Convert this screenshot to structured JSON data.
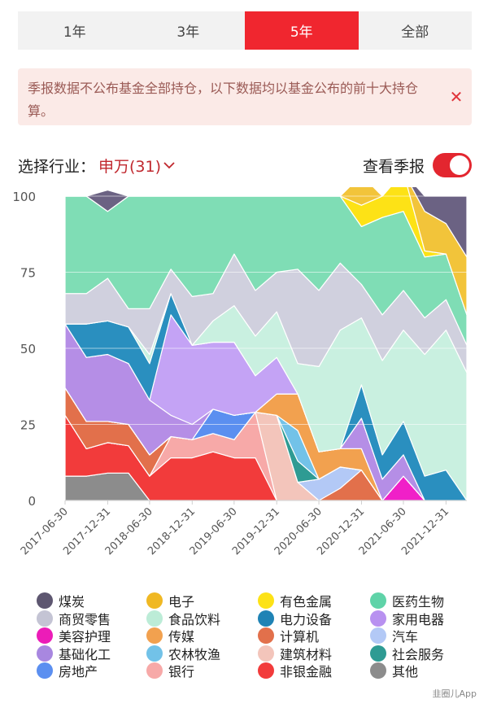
{
  "tabs": [
    {
      "label": "1年",
      "active": false
    },
    {
      "label": "3年",
      "active": false
    },
    {
      "label": "5年",
      "active": true
    },
    {
      "label": "全部",
      "active": false
    }
  ],
  "notice": {
    "text": "季报数据不公布基金全部持仓，以下数据均以基金公布的前十大持仓算。"
  },
  "filter": {
    "label": "选择行业：",
    "value": "申万(31)"
  },
  "report_toggle": {
    "label": "查看季报",
    "on": true
  },
  "watermark": "韭圈儿App",
  "chart_data": {
    "type": "area",
    "stacked": true,
    "ylim": [
      0,
      100
    ],
    "yticks": [
      0,
      25,
      50,
      75,
      100
    ],
    "xlabels": [
      "2017-06-30",
      "2017-12-31",
      "2018-06-30",
      "2018-12-31",
      "2019-06-30",
      "2019-12-31",
      "2020-06-30",
      "2020-12-31",
      "2021-06-30",
      "2021-12-31"
    ],
    "x": [
      "2017-06-30",
      "2017-09-30",
      "2017-12-31",
      "2018-03-31",
      "2018-06-30",
      "2018-09-30",
      "2018-12-31",
      "2019-03-31",
      "2019-06-30",
      "2019-09-30",
      "2019-12-31",
      "2020-03-31",
      "2020-06-30",
      "2020-09-30",
      "2020-12-31",
      "2021-03-31",
      "2021-06-30",
      "2021-09-30",
      "2021-12-31",
      "2022-03-31"
    ],
    "series": [
      {
        "name": "其他",
        "color": "#8c8c8c",
        "values": [
          8,
          8,
          9,
          9,
          0,
          0,
          0,
          0,
          0,
          0,
          0,
          0,
          0,
          0,
          0,
          0,
          0,
          0,
          0,
          0
        ]
      },
      {
        "name": "非银金融",
        "color": "#f23b3b",
        "values": [
          20,
          9,
          10,
          9,
          8,
          14,
          14,
          16,
          14,
          14,
          0,
          0,
          0,
          0,
          0,
          0,
          0,
          0,
          0,
          0
        ]
      },
      {
        "name": "银行",
        "color": "#f7a9a8",
        "values": [
          0,
          0,
          0,
          0,
          0,
          7,
          6,
          6,
          6,
          15,
          0,
          0,
          0,
          0,
          0,
          0,
          0,
          0,
          0,
          0
        ]
      },
      {
        "name": "建筑材料",
        "color": "#f3c5bb",
        "values": [
          0,
          0,
          0,
          0,
          0,
          0,
          0,
          0,
          0,
          0,
          28,
          6,
          0,
          0,
          0,
          0,
          0,
          0,
          0,
          0
        ]
      },
      {
        "name": "计算机",
        "color": "#e2704b",
        "values": [
          9,
          9,
          7,
          7,
          7,
          0,
          0,
          0,
          0,
          0,
          0,
          0,
          0,
          4,
          10,
          0,
          0,
          0,
          0,
          0
        ]
      },
      {
        "name": "汽车",
        "color": "#b3c9f6",
        "values": [
          0,
          0,
          0,
          0,
          0,
          0,
          0,
          0,
          0,
          0,
          0,
          0,
          7,
          7,
          0,
          0,
          0,
          0,
          0,
          0
        ]
      },
      {
        "name": "美容护理",
        "color": "#f020c8",
        "values": [
          0,
          0,
          0,
          0,
          0,
          0,
          0,
          0,
          0,
          0,
          0,
          0,
          0,
          0,
          0,
          0,
          8,
          0,
          0,
          0
        ]
      },
      {
        "name": "房地产",
        "color": "#5b8ff0",
        "values": [
          0,
          0,
          0,
          0,
          0,
          0,
          0,
          8,
          8,
          0,
          0,
          0,
          0,
          0,
          0,
          0,
          0,
          0,
          0,
          0
        ]
      },
      {
        "name": "社会服务",
        "color": "#2e9b93",
        "values": [
          0,
          0,
          0,
          0,
          0,
          0,
          0,
          0,
          0,
          0,
          0,
          7,
          0,
          0,
          0,
          0,
          0,
          0,
          0,
          0
        ]
      },
      {
        "name": "农林牧渔",
        "color": "#72c2e8",
        "values": [
          0,
          0,
          0,
          0,
          0,
          0,
          0,
          0,
          0,
          0,
          0,
          10,
          0,
          0,
          0,
          0,
          0,
          0,
          0,
          0
        ]
      },
      {
        "name": "传媒",
        "color": "#f2a14f",
        "values": [
          0,
          0,
          0,
          0,
          0,
          0,
          0,
          0,
          0,
          0,
          7,
          12,
          9,
          6,
          7,
          0,
          0,
          0,
          0,
          0
        ]
      },
      {
        "name": "基础化工",
        "color": "#b58ee6",
        "values": [
          21,
          21,
          22,
          20,
          18,
          7,
          5,
          0,
          0,
          0,
          0,
          0,
          0,
          0,
          10,
          7,
          7,
          0,
          0,
          0
        ]
      },
      {
        "name": "家用电器",
        "color": "#c4a3f5",
        "values": [
          0,
          0,
          0,
          0,
          0,
          33,
          26,
          22,
          24,
          12,
          12,
          0,
          0,
          0,
          0,
          0,
          0,
          0,
          0,
          0
        ]
      },
      {
        "name": "电力设备",
        "color": "#2a8fbf",
        "values": [
          0,
          11,
          11,
          12,
          12,
          7,
          0,
          0,
          0,
          0,
          0,
          0,
          0,
          0,
          11,
          8,
          11,
          8,
          10,
          0
        ]
      },
      {
        "name": "食品饮料",
        "color": "#c9f0e0",
        "values": [
          0,
          0,
          0,
          0,
          3,
          0,
          0,
          7,
          12,
          13,
          15,
          10,
          28,
          39,
          22,
          31,
          30,
          40,
          46,
          42
        ]
      },
      {
        "name": "商贸零售",
        "color": "#d0d0de",
        "values": [
          10,
          10,
          14,
          6,
          15,
          8,
          16,
          9,
          17,
          15,
          13,
          31,
          25,
          22,
          11,
          15,
          13,
          12,
          10,
          9
        ]
      },
      {
        "name": "医药生物",
        "color": "#7fddb5",
        "values": [
          32,
          32,
          22,
          37,
          37,
          24,
          33,
          32,
          19,
          31,
          25,
          24,
          31,
          22,
          19,
          32,
          26,
          20,
          15,
          10
        ]
      },
      {
        "name": "有色金属",
        "color": "#fde216",
        "values": [
          0,
          0,
          0,
          0,
          0,
          0,
          0,
          0,
          0,
          0,
          0,
          0,
          0,
          0,
          7,
          7,
          13,
          2,
          0,
          0
        ]
      },
      {
        "name": "电子",
        "color": "#f2c43a",
        "values": [
          0,
          0,
          0,
          0,
          0,
          0,
          0,
          0,
          0,
          0,
          0,
          0,
          0,
          0,
          10,
          0,
          0,
          13,
          10,
          19
        ]
      },
      {
        "name": "煤炭",
        "color": "#6b6283",
        "values": [
          0,
          0,
          7,
          0,
          0,
          0,
          0,
          0,
          0,
          0,
          0,
          0,
          0,
          0,
          0,
          0,
          0,
          5,
          9,
          20
        ]
      }
    ],
    "legend": [
      {
        "name": "煤炭",
        "color": "#5d5670"
      },
      {
        "name": "电子",
        "color": "#f0b823"
      },
      {
        "name": "有色金属",
        "color": "#fde216"
      },
      {
        "name": "医药生物",
        "color": "#5fd3a8"
      },
      {
        "name": "商贸零售",
        "color": "#c4c4d4"
      },
      {
        "name": "食品饮料",
        "color": "#bcecd7"
      },
      {
        "name": "电力设备",
        "color": "#1f83b5"
      },
      {
        "name": "家用电器",
        "color": "#b891f0"
      },
      {
        "name": "美容护理",
        "color": "#ec1cb8"
      },
      {
        "name": "传媒",
        "color": "#f2a14f"
      },
      {
        "name": "计算机",
        "color": "#e2704b"
      },
      {
        "name": "汽车",
        "color": "#b3c9f6"
      },
      {
        "name": "基础化工",
        "color": "#a887e0"
      },
      {
        "name": "农林牧渔",
        "color": "#72c2e8"
      },
      {
        "name": "建筑材料",
        "color": "#f3c5bb"
      },
      {
        "name": "社会服务",
        "color": "#2e9b93"
      },
      {
        "name": "房地产",
        "color": "#5b8ff0"
      },
      {
        "name": "银行",
        "color": "#f7a9a8"
      },
      {
        "name": "非银金融",
        "color": "#f23b3b"
      },
      {
        "name": "其他",
        "color": "#8c8c8c"
      }
    ]
  }
}
